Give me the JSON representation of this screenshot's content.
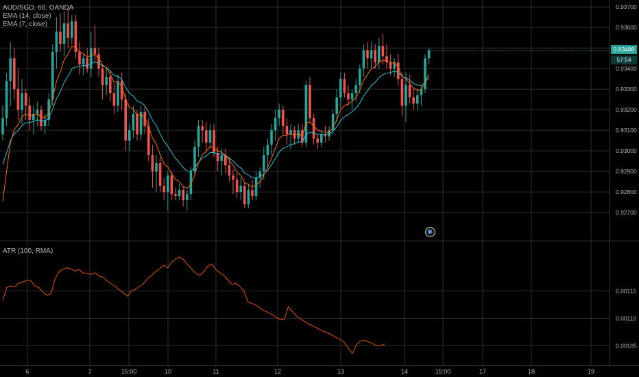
{
  "legend": {
    "symbol": "AUD/SGD, 60, OANDA",
    "ema14": "EMA (14, close)",
    "ema7": "EMA (7, close)",
    "atr": "ATR (100, RMA)"
  },
  "price_axis": {
    "ticks": [
      "0.93700",
      "0.93600",
      "0.93400",
      "0.93300",
      "0.93200",
      "0.93100",
      "0.93000",
      "0.92900",
      "0.92800",
      "0.92700"
    ],
    "last_price": "0.93488",
    "countdown": "57:54"
  },
  "atr_axis": {
    "ticks": [
      "0.00115",
      "0.00110",
      "0.00105"
    ]
  },
  "time_axis": {
    "ticks": [
      "6",
      "7",
      "15:00",
      "10",
      "11",
      "12",
      "13",
      "14",
      "15:00",
      "17",
      "18",
      "19"
    ]
  },
  "colors": {
    "background": "#000000",
    "grid": "#2e2e2e",
    "up": "#26a69a",
    "down": "#ef5350",
    "ema14": "#26c6da",
    "ema7": "#ff6d00",
    "atr": "#e65100",
    "axis_text": "#b2b5be"
  },
  "chart_data": [
    {
      "type": "candlestick",
      "title": "AUD/SGD, 60, OANDA",
      "ylim": [
        0.92657,
        0.93717
      ],
      "series": [
        {
          "name": "EMA (14, close)"
        },
        {
          "name": "EMA (7, close)"
        }
      ],
      "candles": [
        [
          0.9308,
          0.9322,
          0.9305,
          0.9316
        ],
        [
          0.9316,
          0.9338,
          0.9312,
          0.9334
        ],
        [
          0.9334,
          0.9353,
          0.9322,
          0.9345
        ],
        [
          0.9345,
          0.935,
          0.9325,
          0.933
        ],
        [
          0.933,
          0.934,
          0.9315,
          0.932
        ],
        [
          0.932,
          0.9335,
          0.9313,
          0.9328
        ],
        [
          0.9328,
          0.933,
          0.9315,
          0.9322
        ],
        [
          0.9322,
          0.9326,
          0.931,
          0.9315
        ],
        [
          0.9315,
          0.9322,
          0.9308,
          0.9318
        ],
        [
          0.9318,
          0.9324,
          0.9312,
          0.932
        ],
        [
          0.932,
          0.9322,
          0.931,
          0.9312
        ],
        [
          0.9312,
          0.9318,
          0.9308,
          0.9315
        ],
        [
          0.9315,
          0.9328,
          0.9312,
          0.9325
        ],
        [
          0.9325,
          0.9352,
          0.9322,
          0.9348
        ],
        [
          0.9348,
          0.9365,
          0.934,
          0.9358
        ],
        [
          0.9358,
          0.9367,
          0.9348,
          0.9352
        ],
        [
          0.9352,
          0.9368,
          0.9346,
          0.9362
        ],
        [
          0.9362,
          0.937,
          0.935,
          0.9355
        ],
        [
          0.9355,
          0.9366,
          0.9352,
          0.9363
        ],
        [
          0.9363,
          0.9366,
          0.9345,
          0.9348
        ],
        [
          0.9348,
          0.9353,
          0.9337,
          0.9342
        ],
        [
          0.9342,
          0.9347,
          0.9337,
          0.9345
        ],
        [
          0.9345,
          0.935,
          0.9338,
          0.934
        ],
        [
          0.934,
          0.9358,
          0.9336,
          0.935
        ],
        [
          0.935,
          0.9361,
          0.9343,
          0.9347
        ],
        [
          0.9347,
          0.935,
          0.9336,
          0.934
        ],
        [
          0.934,
          0.9342,
          0.9325,
          0.9332
        ],
        [
          0.9332,
          0.934,
          0.9327,
          0.9336
        ],
        [
          0.9336,
          0.9339,
          0.9324,
          0.9328
        ],
        [
          0.9328,
          0.9333,
          0.9318,
          0.9322
        ],
        [
          0.9322,
          0.9337,
          0.9319,
          0.9334
        ],
        [
          0.9334,
          0.9338,
          0.932,
          0.9325
        ],
        [
          0.9325,
          0.9328,
          0.93,
          0.9305
        ],
        [
          0.9305,
          0.9313,
          0.93,
          0.931
        ],
        [
          0.931,
          0.9322,
          0.9306,
          0.9318
        ],
        [
          0.9318,
          0.932,
          0.9305,
          0.9308
        ],
        [
          0.9308,
          0.9322,
          0.9305,
          0.9319
        ],
        [
          0.9319,
          0.9322,
          0.9308,
          0.9312
        ],
        [
          0.9312,
          0.9316,
          0.9295,
          0.9298
        ],
        [
          0.9298,
          0.9303,
          0.9282,
          0.929
        ],
        [
          0.929,
          0.9298,
          0.928,
          0.9294
        ],
        [
          0.9294,
          0.9297,
          0.928,
          0.9283
        ],
        [
          0.9283,
          0.9287,
          0.9276,
          0.928
        ],
        [
          0.928,
          0.929,
          0.9271,
          0.9288
        ],
        [
          0.9288,
          0.929,
          0.9276,
          0.9279
        ],
        [
          0.9279,
          0.9282,
          0.9276,
          0.9278
        ],
        [
          0.9278,
          0.9284,
          0.9276,
          0.9281
        ],
        [
          0.9281,
          0.9283,
          0.9273,
          0.9276
        ],
        [
          0.9276,
          0.9281,
          0.9271,
          0.9279
        ],
        [
          0.9279,
          0.9292,
          0.9276,
          0.929
        ],
        [
          0.929,
          0.9305,
          0.9288,
          0.9302
        ],
        [
          0.9302,
          0.9315,
          0.9297,
          0.9312
        ],
        [
          0.9312,
          0.9315,
          0.9304,
          0.931
        ],
        [
          0.931,
          0.9314,
          0.93,
          0.9304
        ],
        [
          0.9304,
          0.9313,
          0.9301,
          0.931
        ],
        [
          0.931,
          0.9313,
          0.9297,
          0.9299
        ],
        [
          0.9299,
          0.9302,
          0.929,
          0.9295
        ],
        [
          0.9295,
          0.9301,
          0.9288,
          0.9298
        ],
        [
          0.9298,
          0.9301,
          0.9289,
          0.9293
        ],
        [
          0.9293,
          0.9297,
          0.9285,
          0.9288
        ],
        [
          0.9288,
          0.9291,
          0.9279,
          0.9286
        ],
        [
          0.9286,
          0.9289,
          0.9277,
          0.928
        ],
        [
          0.928,
          0.9287,
          0.9276,
          0.9283
        ],
        [
          0.9283,
          0.9285,
          0.9272,
          0.9274
        ],
        [
          0.9274,
          0.9284,
          0.9272,
          0.9281
        ],
        [
          0.9281,
          0.9286,
          0.9276,
          0.9278
        ],
        [
          0.9278,
          0.929,
          0.9276,
          0.9287
        ],
        [
          0.9287,
          0.9292,
          0.9282,
          0.929
        ],
        [
          0.929,
          0.9302,
          0.9286,
          0.9298
        ],
        [
          0.9298,
          0.9306,
          0.9292,
          0.9303
        ],
        [
          0.9303,
          0.9313,
          0.9298,
          0.931
        ],
        [
          0.931,
          0.932,
          0.9305,
          0.9316
        ],
        [
          0.9316,
          0.9323,
          0.9312,
          0.932
        ],
        [
          0.932,
          0.9322,
          0.9308,
          0.9312
        ],
        [
          0.9312,
          0.9316,
          0.9303,
          0.9308
        ],
        [
          0.9308,
          0.9313,
          0.9301,
          0.931
        ],
        [
          0.931,
          0.9312,
          0.9303,
          0.9306
        ],
        [
          0.9306,
          0.9313,
          0.9304,
          0.931
        ],
        [
          0.931,
          0.9313,
          0.9302,
          0.9304
        ],
        [
          0.9304,
          0.9334,
          0.9302,
          0.9332
        ],
        [
          0.9332,
          0.9336,
          0.9314,
          0.9316
        ],
        [
          0.9316,
          0.9318,
          0.9303,
          0.9306
        ],
        [
          0.9306,
          0.9308,
          0.9301,
          0.9304
        ],
        [
          0.9304,
          0.931,
          0.9302,
          0.9308
        ],
        [
          0.9308,
          0.9312,
          0.9304,
          0.9307
        ],
        [
          0.9307,
          0.9312,
          0.9305,
          0.931
        ],
        [
          0.931,
          0.932,
          0.9308,
          0.9318
        ],
        [
          0.9318,
          0.933,
          0.9314,
          0.9326
        ],
        [
          0.9326,
          0.9338,
          0.9321,
          0.9335
        ],
        [
          0.9335,
          0.9338,
          0.9326,
          0.9328
        ],
        [
          0.9328,
          0.9332,
          0.9322,
          0.9325
        ],
        [
          0.9325,
          0.933,
          0.932,
          0.9328
        ],
        [
          0.9328,
          0.9335,
          0.9324,
          0.9332
        ],
        [
          0.9332,
          0.9342,
          0.9328,
          0.934
        ],
        [
          0.934,
          0.9352,
          0.9336,
          0.9349
        ],
        [
          0.9349,
          0.9353,
          0.934,
          0.9345
        ],
        [
          0.9345,
          0.9353,
          0.934,
          0.9349
        ],
        [
          0.9349,
          0.9352,
          0.934,
          0.9343
        ],
        [
          0.9343,
          0.9355,
          0.934,
          0.9351
        ],
        [
          0.9351,
          0.9357,
          0.9342,
          0.9346
        ],
        [
          0.9346,
          0.9352,
          0.934,
          0.9343
        ],
        [
          0.9343,
          0.9347,
          0.9337,
          0.934
        ],
        [
          0.934,
          0.9345,
          0.9336,
          0.9343
        ],
        [
          0.9343,
          0.9347,
          0.9332,
          0.9335
        ],
        [
          0.9335,
          0.9338,
          0.9317,
          0.9322
        ],
        [
          0.9322,
          0.9338,
          0.9314,
          0.9332
        ],
        [
          0.9332,
          0.9337,
          0.9323,
          0.9326
        ],
        [
          0.9326,
          0.933,
          0.932,
          0.9323
        ],
        [
          0.9323,
          0.933,
          0.932,
          0.9327
        ],
        [
          0.9327,
          0.9332,
          0.9322,
          0.933
        ],
        [
          0.933,
          0.9347,
          0.9328,
          0.9345
        ],
        [
          0.9345,
          0.935,
          0.9342,
          0.9349
        ]
      ]
    },
    {
      "type": "line",
      "title": "ATR (100, RMA)",
      "ylim": [
        0.001028,
        0.001228
      ],
      "series": [
        {
          "name": "ATR (100, RMA)",
          "values": [
            0.001133,
            0.001156,
            0.001159,
            0.001158,
            0.001164,
            0.001166,
            0.00117,
            0.001168,
            0.001159,
            0.001156,
            0.001148,
            0.001142,
            0.001145,
            0.001172,
            0.001185,
            0.00119,
            0.001192,
            0.00119,
            0.001186,
            0.001189,
            0.001183,
            0.001182,
            0.00118,
            0.001183,
            0.001177,
            0.001175,
            0.001168,
            0.001163,
            0.001158,
            0.001152,
            0.001147,
            0.00114,
            0.00115,
            0.001153,
            0.001158,
            0.001163,
            0.001172,
            0.001178,
            0.001185,
            0.00119,
            0.001197,
            0.001192,
            0.001202,
            0.001208,
            0.001212,
            0.001207,
            0.001198,
            0.00119,
            0.001182,
            0.001178,
            0.001185,
            0.001195,
            0.001199,
            0.001189,
            0.001183,
            0.001178,
            0.00117,
            0.001162,
            0.001164,
            0.001158,
            0.00115,
            0.00113,
            0.001127,
            0.001124,
            0.001119,
            0.001114,
            0.001111,
            0.001107,
            0.001102,
            0.001098,
            0.001097,
            0.001121,
            0.001113,
            0.001105,
            0.001099,
            0.001095,
            0.00109,
            0.001087,
            0.001083,
            0.001079,
            0.001076,
            0.001073,
            0.001069,
            0.001065,
            0.001061,
            0.001056,
            0.001045,
            0.001036,
            0.001052,
            0.001059,
            0.00106,
            0.001057,
            0.001054,
            0.00105,
            0.00105,
            0.001053
          ]
        }
      ]
    }
  ]
}
